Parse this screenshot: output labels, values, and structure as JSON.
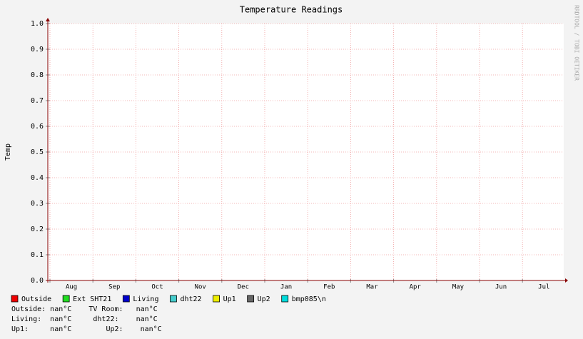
{
  "chart_data": {
    "type": "line",
    "title": "Temperature Readings",
    "ylabel": "Temp",
    "watermark": "RRDTOOL / TOBI OETIKER",
    "categories": [
      "Aug",
      "Sep",
      "Oct",
      "Nov",
      "Dec",
      "Jan",
      "Feb",
      "Mar",
      "Apr",
      "May",
      "Jun",
      "Jul"
    ],
    "series": [
      {
        "name": "Outside",
        "color": "#ee0000",
        "values": [
          null,
          null,
          null,
          null,
          null,
          null,
          null,
          null,
          null,
          null,
          null,
          null
        ]
      },
      {
        "name": "Ext SHT21",
        "color": "#22dd22",
        "values": [
          null,
          null,
          null,
          null,
          null,
          null,
          null,
          null,
          null,
          null,
          null,
          null
        ]
      },
      {
        "name": "Living",
        "color": "#0000cc",
        "values": [
          null,
          null,
          null,
          null,
          null,
          null,
          null,
          null,
          null,
          null,
          null,
          null
        ]
      },
      {
        "name": "dht22",
        "color": "#44cccc",
        "values": [
          null,
          null,
          null,
          null,
          null,
          null,
          null,
          null,
          null,
          null,
          null,
          null
        ]
      },
      {
        "name": "Up1",
        "color": "#eeee00",
        "values": [
          null,
          null,
          null,
          null,
          null,
          null,
          null,
          null,
          null,
          null,
          null,
          null
        ]
      },
      {
        "name": "Up2",
        "color": "#666666",
        "values": [
          null,
          null,
          null,
          null,
          null,
          null,
          null,
          null,
          null,
          null,
          null,
          null
        ]
      },
      {
        "name": "bmp085\\n",
        "color": "#00dddd",
        "values": [
          null,
          null,
          null,
          null,
          null,
          null,
          null,
          null,
          null,
          null,
          null,
          null
        ]
      }
    ],
    "ylim": [
      0,
      1
    ],
    "yticks": [
      {
        "value": 0,
        "label": "0.0"
      },
      0.1,
      0.2,
      0.3,
      0.4,
      0.5,
      0.6,
      0.7,
      0.8,
      0.9,
      {
        "value": 1,
        "label": "1.0"
      }
    ],
    "grid": true,
    "summary": [
      "Outside: nan°C    TV Room:   nan°C",
      "Living:  nan°C     dht22:    nan°C",
      "Up1:     nan°C        Up2:    nan°C"
    ]
  }
}
